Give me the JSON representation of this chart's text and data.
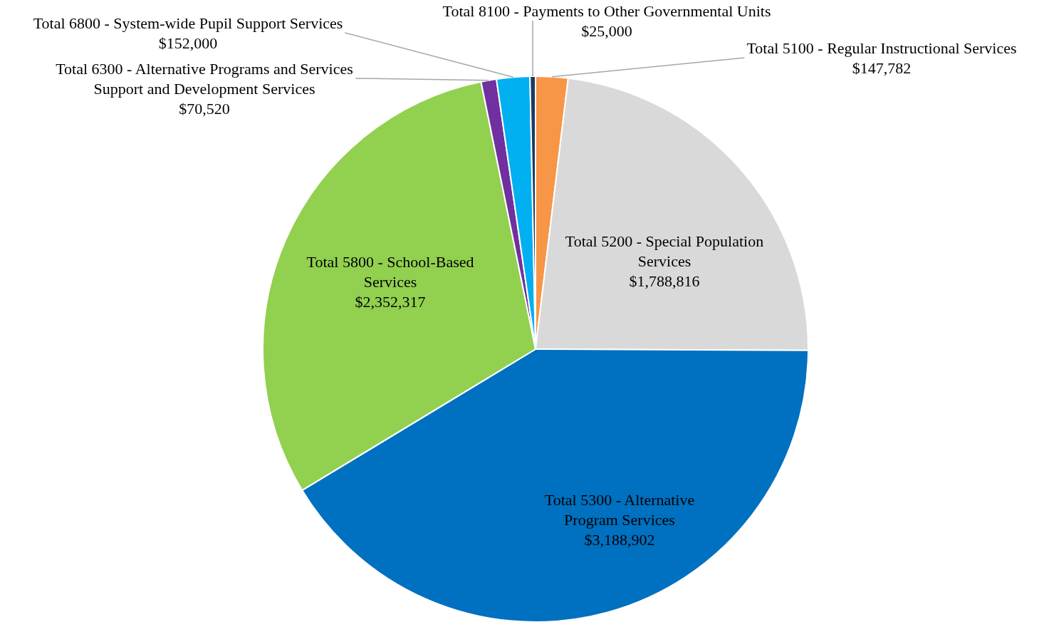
{
  "chart_data": {
    "type": "pie",
    "categories": [
      "Total 5100 - Regular Instructional Services",
      "Total 5200 - Special Population Services",
      "Total 5300 - Alternative Program Services",
      "Total 5800 - School-Based Services",
      "Total 6300 - Alternative Programs and Services Support and Development Services",
      "Total 6800 - System-wide Pupil Support Services",
      "Total 8100 - Payments to Other Governmental Units"
    ],
    "values": [
      147782,
      1788816,
      3188902,
      2352317,
      70520,
      152000,
      25000
    ],
    "colors": [
      "#f79646",
      "#d9d9d9",
      "#0070c0",
      "#92d050",
      "#7030a0",
      "#00b0f0",
      "#1f3864"
    ],
    "value_labels": [
      "$147,782",
      "$1,788,816",
      "$3,188,902",
      "$2,352,317",
      "$70,520",
      "$152,000",
      "$25,000"
    ]
  }
}
